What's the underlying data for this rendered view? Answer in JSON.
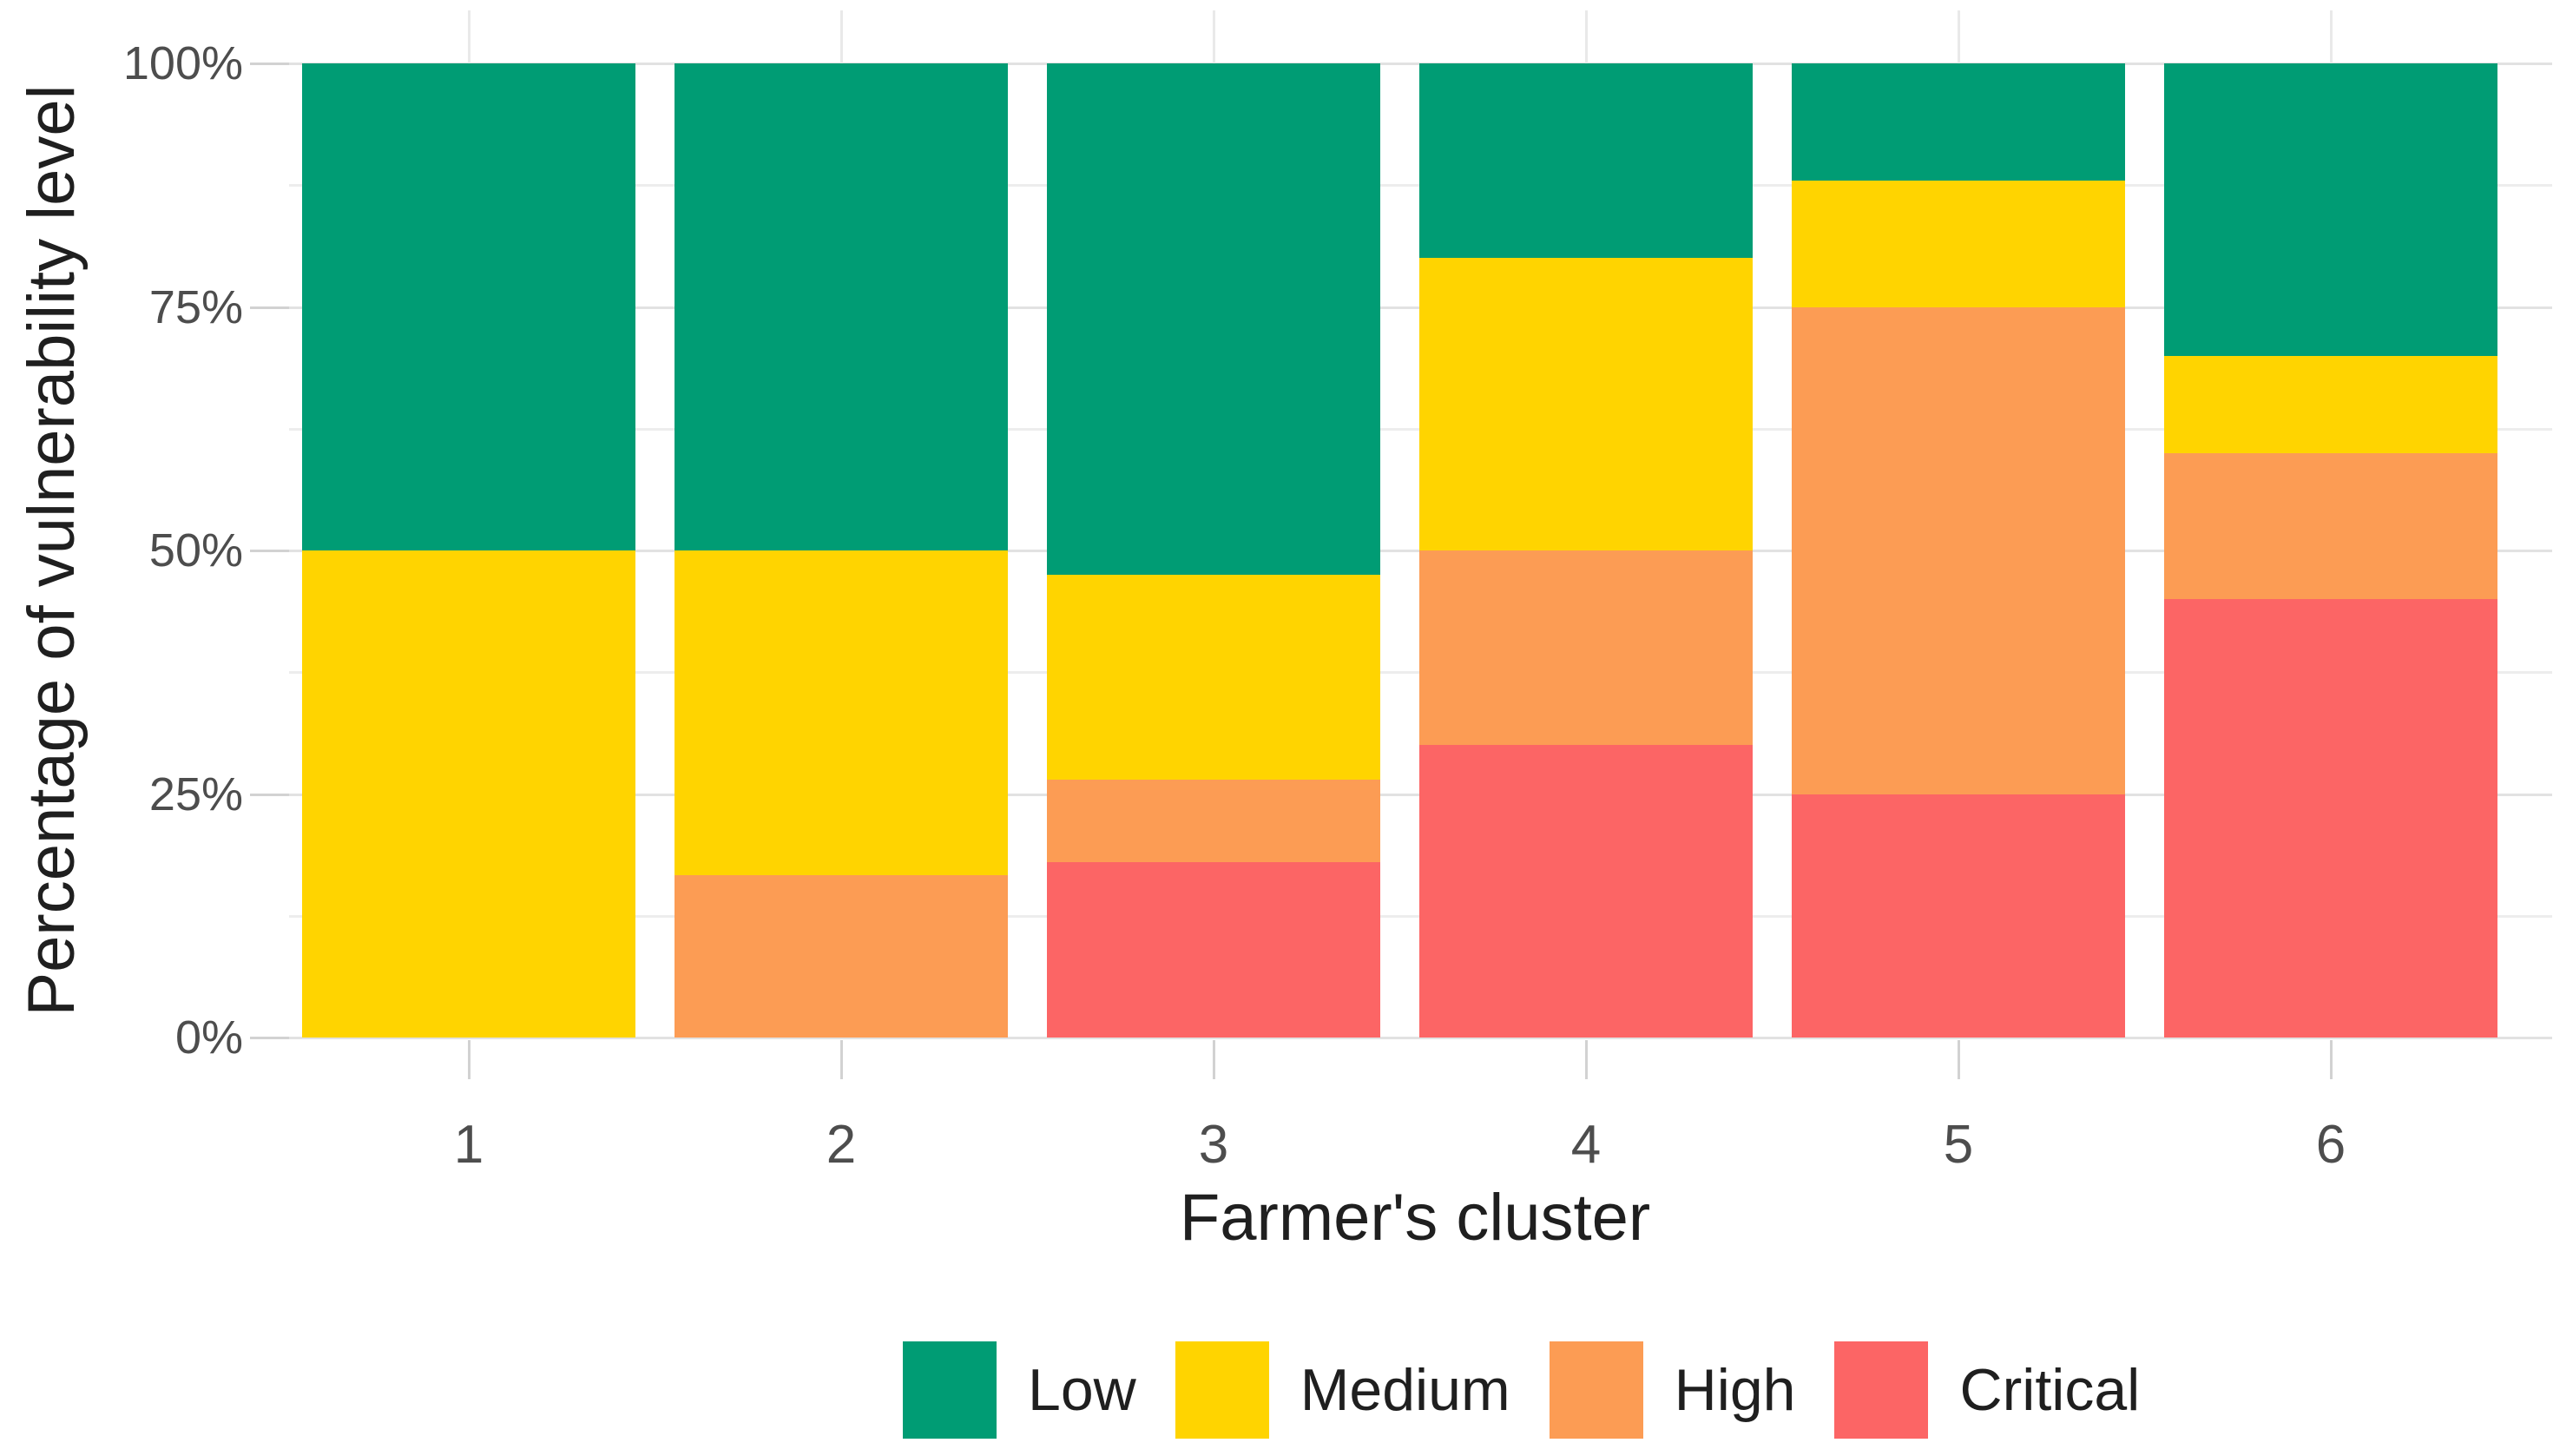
{
  "chart_data": {
    "type": "bar",
    "stacked": true,
    "normalized_to_percent": true,
    "title": "",
    "xlabel": "Farmer's cluster",
    "ylabel": "Percentage of vulnerability level",
    "categories": [
      "1",
      "2",
      "3",
      "4",
      "5",
      "6"
    ],
    "series": [
      {
        "name": "Low",
        "color": "#009c74",
        "values": [
          50,
          50,
          52.5,
          20,
          12,
          30
        ]
      },
      {
        "name": "Medium",
        "color": "#ffd400",
        "values": [
          50,
          33.3,
          21,
          30,
          13,
          10
        ]
      },
      {
        "name": "High",
        "color": "#fc9c54",
        "values": [
          0,
          16.7,
          8.5,
          20,
          50,
          15
        ]
      },
      {
        "name": "Critical",
        "color": "#fc6565",
        "values": [
          0,
          0,
          18,
          30,
          25,
          45
        ]
      }
    ],
    "stack_order_bottom_to_top": [
      "Critical",
      "High",
      "Medium",
      "Low"
    ],
    "ylim": [
      0,
      100
    ],
    "y_major_ticks": [
      0,
      25,
      50,
      75,
      100
    ],
    "y_minor_ticks": [
      12.5,
      37.5,
      62.5,
      87.5
    ],
    "y_tick_labels": [
      "0%",
      "25%",
      "50%",
      "75%",
      "100%"
    ],
    "grid": "on",
    "legend_position": "bottom",
    "legend_entries": [
      "Low",
      "Medium",
      "High",
      "Critical"
    ]
  },
  "colors": {
    "background": "#ffffff",
    "grid_major": "#e2e2e2",
    "grid_minor": "#ededed",
    "tick_mark": "#d2d2d2",
    "tick_label_text": "#4d4d4d",
    "axis_title_text": "#1f1f1f",
    "legend_text": "#1f1f1f"
  }
}
